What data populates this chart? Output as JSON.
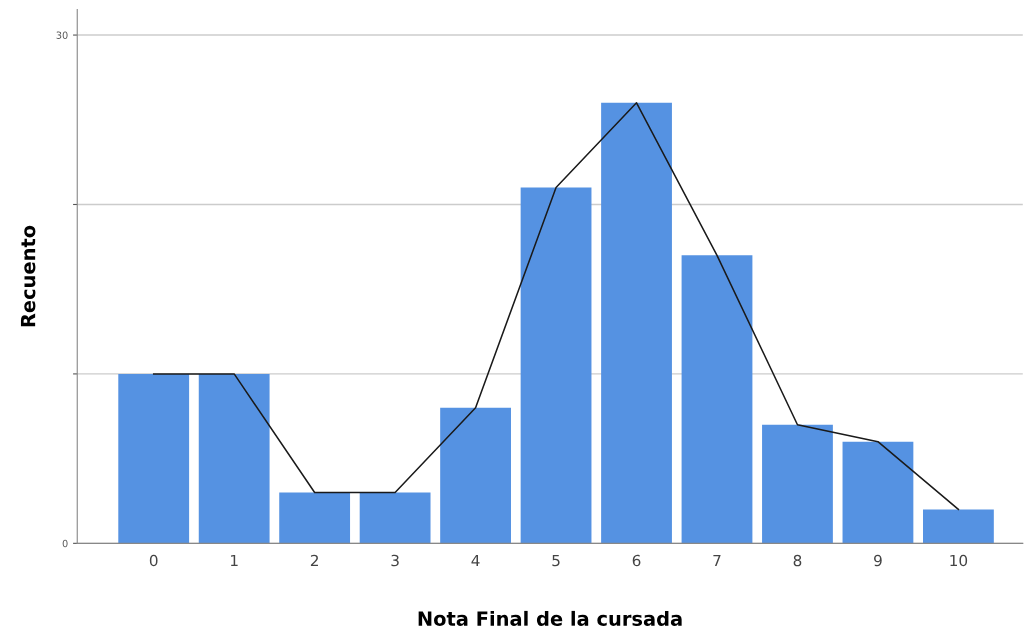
{
  "chart_data": {
    "type": "bar",
    "xlabel": "Nota Final de la cursada",
    "ylabel": "Recuento",
    "categories": [
      "0",
      "1",
      "2",
      "3",
      "4",
      "5",
      "6",
      "7",
      "8",
      "9",
      "10"
    ],
    "series": [
      {
        "color": "#5592e2",
        "values": [
          10,
          10,
          3,
          3,
          8,
          21,
          26,
          17,
          7,
          6,
          2
        ]
      },
      {
        "type": "line",
        "color": "#1a1a1a",
        "values": [
          10,
          10,
          3,
          3,
          8,
          21,
          26,
          17,
          7,
          6,
          2
        ]
      }
    ],
    "ylim": [
      0,
      31.5
    ],
    "yticks": [
      0,
      {
        "value": 10,
        "label": null
      },
      {
        "value": 20,
        "label": null
      },
      30
    ],
    "grid": "y",
    "marker": "none",
    "line_style": "solid"
  }
}
